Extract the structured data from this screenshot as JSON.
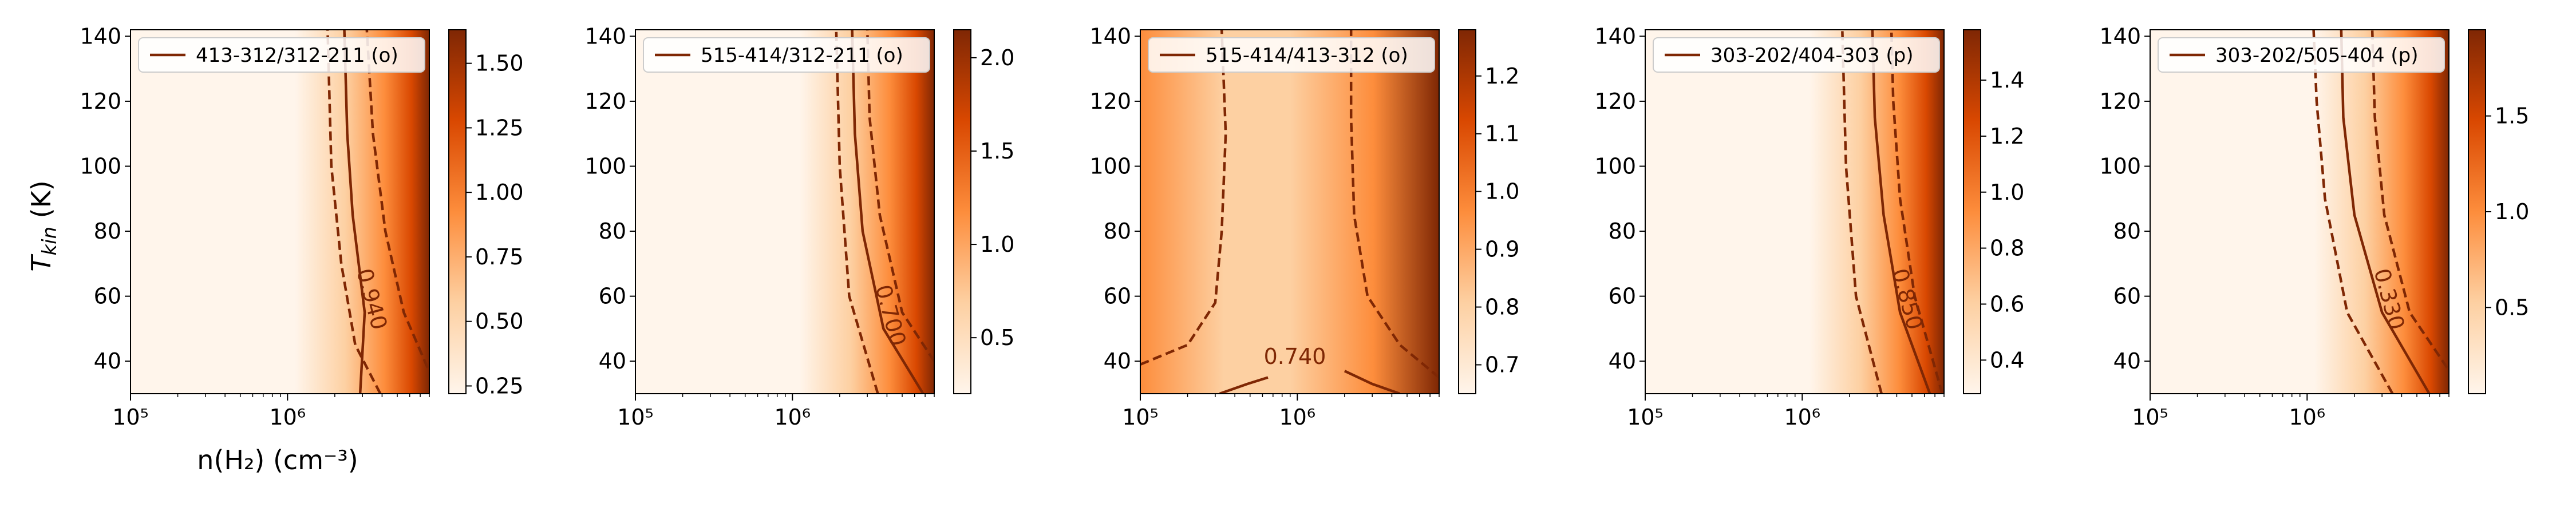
{
  "figure": {
    "xlabel": "n(H₂) (cm⁻³)",
    "ylabel": "T_kin (K)"
  },
  "colors": {
    "cmap_low": "#fff5eb",
    "cmap_mid1": "#fdd0a2",
    "cmap_mid2": "#fd8d3c",
    "cmap_mid3": "#d94801",
    "cmap_high": "#7f2704",
    "contour": "#7f2704"
  },
  "chart_data": [
    {
      "type": "heatmap",
      "legend": "413-312/312-211 (o)",
      "xscale": "log",
      "xlim": [
        100000,
        8000000
      ],
      "ylim": [
        30,
        142
      ],
      "xticks": [
        "10⁵",
        "10⁶"
      ],
      "yticks": [
        "40",
        "60",
        "80",
        "100",
        "120",
        "140"
      ],
      "colorbar": {
        "min": 0.22,
        "max": 1.63,
        "ticks": [
          "0.25",
          "0.50",
          "0.75",
          "1.00",
          "1.25",
          "1.50"
        ]
      },
      "contour_label": "0.940",
      "contours": {
        "solid": [
          [
            2900000,
            30
          ],
          [
            3100000,
            55
          ],
          [
            2600000,
            85
          ],
          [
            2400000,
            110
          ],
          [
            2300000,
            142
          ]
        ],
        "dashed_left": [
          [
            3900000,
            30
          ],
          [
            2700000,
            45
          ],
          [
            2200000,
            70
          ],
          [
            1900000,
            100
          ],
          [
            1800000,
            142
          ]
        ],
        "dashed_right": [
          [
            7800000,
            38
          ],
          [
            5500000,
            55
          ],
          [
            4200000,
            80
          ],
          [
            3500000,
            110
          ],
          [
            3200000,
            142
          ]
        ]
      }
    },
    {
      "type": "heatmap",
      "legend": "515-414/312-211 (o)",
      "xscale": "log",
      "xlim": [
        100000,
        8000000
      ],
      "ylim": [
        30,
        142
      ],
      "xticks": [
        "10⁵",
        "10⁶"
      ],
      "yticks": [
        "40",
        "60",
        "80",
        "100",
        "120",
        "140"
      ],
      "colorbar": {
        "min": 0.2,
        "max": 2.15,
        "ticks": [
          "0.5",
          "1.0",
          "1.5",
          "2.0"
        ]
      },
      "contour_label": "0.700",
      "contours": {
        "solid": [
          [
            6800000,
            30
          ],
          [
            3800000,
            50
          ],
          [
            2800000,
            80
          ],
          [
            2500000,
            110
          ],
          [
            2400000,
            142
          ]
        ],
        "dashed_left": [
          [
            3500000,
            30
          ],
          [
            2300000,
            60
          ],
          [
            2000000,
            100
          ],
          [
            1900000,
            142
          ]
        ],
        "dashed_right": [
          [
            8000000,
            40
          ],
          [
            5000000,
            55
          ],
          [
            3600000,
            85
          ],
          [
            3100000,
            115
          ],
          [
            3000000,
            142
          ]
        ]
      }
    },
    {
      "type": "heatmap",
      "legend": "515-414/413-312 (o)",
      "xscale": "log",
      "xlim": [
        100000,
        8000000
      ],
      "ylim": [
        30,
        142
      ],
      "xticks": [
        "10⁵",
        "10⁶"
      ],
      "yticks": [
        "40",
        "60",
        "80",
        "100",
        "120",
        "140"
      ],
      "colorbar": {
        "min": 0.65,
        "max": 1.28,
        "ticks": [
          "0.7",
          "0.8",
          "0.9",
          "1.0",
          "1.1",
          "1.2"
        ]
      },
      "contour_label": "0.740",
      "contours": {
        "dashed_left": [
          [
            100000,
            39
          ],
          [
            200000,
            45
          ],
          [
            300000,
            58
          ],
          [
            330000,
            80
          ],
          [
            350000,
            110
          ],
          [
            330000,
            142
          ]
        ],
        "dashed_right": [
          [
            8000000,
            35
          ],
          [
            4500000,
            45
          ],
          [
            2800000,
            60
          ],
          [
            2300000,
            85
          ],
          [
            2200000,
            115
          ],
          [
            2200000,
            142
          ]
        ],
        "bottom": [
          [
            320000,
            30
          ],
          [
            480000,
            33
          ],
          [
            650000,
            35
          ]
        ],
        "bottom_right": [
          [
            2000000,
            37
          ],
          [
            3000000,
            33
          ],
          [
            4500000,
            30
          ]
        ]
      }
    },
    {
      "type": "heatmap",
      "legend": "303-202/404-303 (p)",
      "xscale": "log",
      "xlim": [
        100000,
        8000000
      ],
      "ylim": [
        30,
        142
      ],
      "xticks": [
        "10⁵",
        "10⁶"
      ],
      "yticks": [
        "40",
        "60",
        "80",
        "100",
        "120",
        "140"
      ],
      "colorbar": {
        "min": 0.28,
        "max": 1.58,
        "ticks": [
          "0.4",
          "0.6",
          "0.8",
          "1.0",
          "1.2",
          "1.4"
        ]
      },
      "contour_label": "0.850",
      "contours": {
        "solid": [
          [
            6500000,
            30
          ],
          [
            4200000,
            55
          ],
          [
            3300000,
            85
          ],
          [
            2900000,
            115
          ],
          [
            2800000,
            142
          ]
        ],
        "dashed_left": [
          [
            3200000,
            30
          ],
          [
            2200000,
            60
          ],
          [
            1900000,
            100
          ],
          [
            1800000,
            142
          ]
        ],
        "dashed_right": [
          [
            7800000,
            30
          ],
          [
            5200000,
            60
          ],
          [
            4200000,
            90
          ],
          [
            3800000,
            120
          ],
          [
            3700000,
            142
          ]
        ]
      }
    },
    {
      "type": "heatmap",
      "legend": "303-202/505-404 (p)",
      "xscale": "log",
      "xlim": [
        100000,
        8000000
      ],
      "ylim": [
        30,
        142
      ],
      "xticks": [
        "10⁵",
        "10⁶"
      ],
      "yticks": [
        "40",
        "60",
        "80",
        "100",
        "120",
        "140"
      ],
      "colorbar": {
        "min": 0.05,
        "max": 1.95,
        "ticks": [
          "0.5",
          "1.0",
          "1.5"
        ]
      },
      "contour_label": "0.330",
      "contours": {
        "solid": [
          [
            6000000,
            30
          ],
          [
            3000000,
            55
          ],
          [
            2000000,
            85
          ],
          [
            1700000,
            115
          ],
          [
            1650000,
            142
          ]
        ],
        "dashed_left": [
          [
            3500000,
            30
          ],
          [
            1800000,
            55
          ],
          [
            1300000,
            90
          ],
          [
            1150000,
            120
          ],
          [
            1100000,
            142
          ]
        ],
        "dashed_right": [
          [
            7800000,
            38
          ],
          [
            4500000,
            55
          ],
          [
            3100000,
            85
          ],
          [
            2700000,
            115
          ],
          [
            2600000,
            142
          ]
        ]
      }
    }
  ]
}
